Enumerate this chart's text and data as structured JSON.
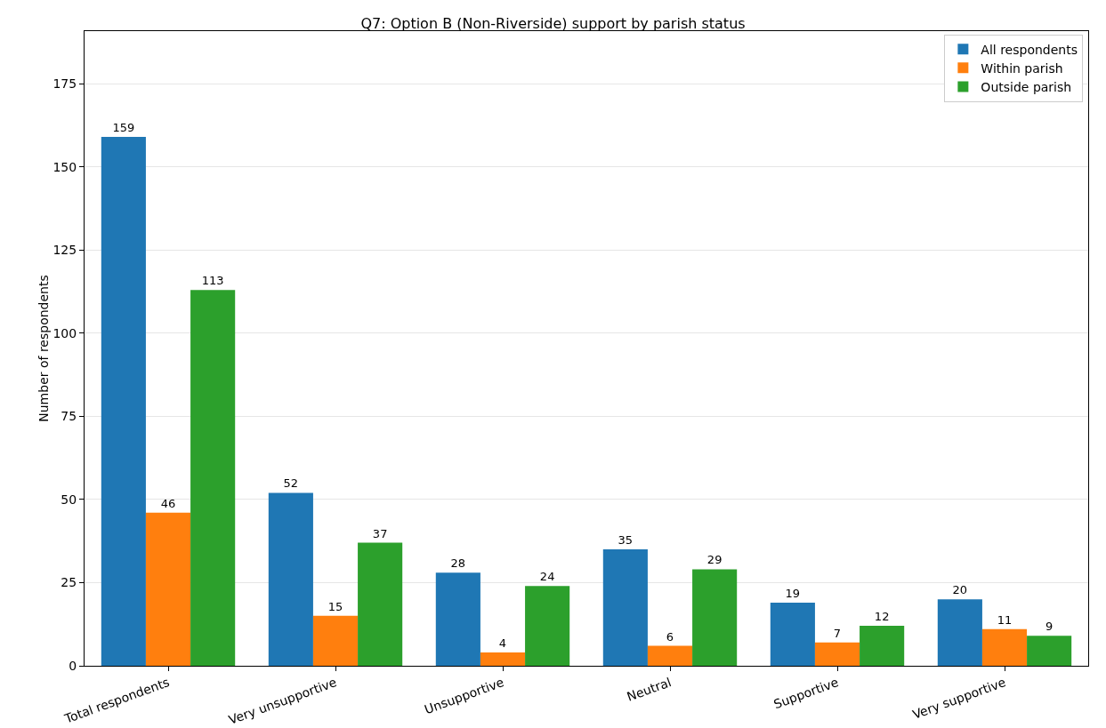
{
  "chart_data": {
    "type": "bar",
    "title": "Q7: Option B (Non-Riverside) support by parish status",
    "ylabel": "Number of respondents",
    "categories": [
      "Total respondents",
      "Very unsupportive",
      "Unsupportive",
      "Neutral",
      "Supportive",
      "Very supportive"
    ],
    "series": [
      {
        "name": "All respondents",
        "color": "#1f77b4",
        "values": [
          159,
          52,
          28,
          35,
          19,
          20
        ]
      },
      {
        "name": "Within parish",
        "color": "#ff7f0e",
        "values": [
          46,
          15,
          4,
          6,
          7,
          11
        ]
      },
      {
        "name": "Outside parish",
        "color": "#2ca02c",
        "values": [
          113,
          37,
          24,
          29,
          12,
          9
        ]
      }
    ],
    "ylim": [
      0,
      190.8
    ],
    "yticks": [
      0,
      25,
      50,
      75,
      100,
      125,
      150,
      175
    ],
    "grid": "y",
    "legend": "top right",
    "data_labels": true
  }
}
